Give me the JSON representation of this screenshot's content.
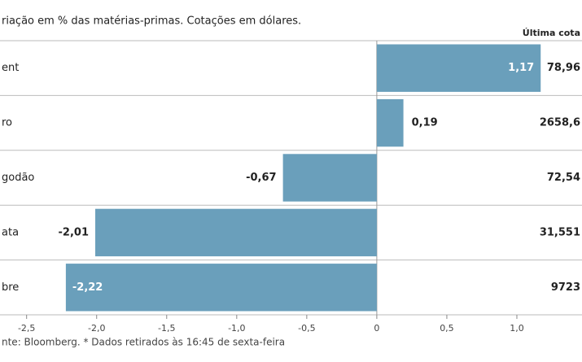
{
  "chart_data": {
    "type": "bar",
    "orientation": "horizontal",
    "title": "riação em % das matérias-primas. Cotações em dólares.",
    "column_header": "Última cota",
    "categories": [
      "ent",
      "ro",
      "godão",
      "ata",
      "bre"
    ],
    "values": [
      1.17,
      0.19,
      -0.67,
      -2.01,
      -2.22
    ],
    "value_labels": [
      "1,17",
      "0,19",
      "-0,67",
      "-2,01",
      "-2,22"
    ],
    "last_prices": [
      "78,96",
      "2658,6",
      "72,54",
      "31,551",
      "9723"
    ],
    "color": "#6a9fbb",
    "xlim": [
      -2.69,
      1.465
    ],
    "xticks": [
      {
        "value": -2.5,
        "label": "-2,5"
      },
      {
        "value": -2.0,
        "label": "-2,0"
      },
      {
        "value": -1.5,
        "label": "-1,5"
      },
      {
        "value": -1.0,
        "label": "-1,0"
      },
      {
        "value": -0.5,
        "label": "-0,5"
      },
      0,
      {
        "value": 0.5,
        "label": "0,5"
      },
      {
        "value": 1.0,
        "label": "1,0"
      }
    ],
    "footer": "nte: Bloomberg.  * Dados retirados às 16:45 de sexta-feira"
  }
}
